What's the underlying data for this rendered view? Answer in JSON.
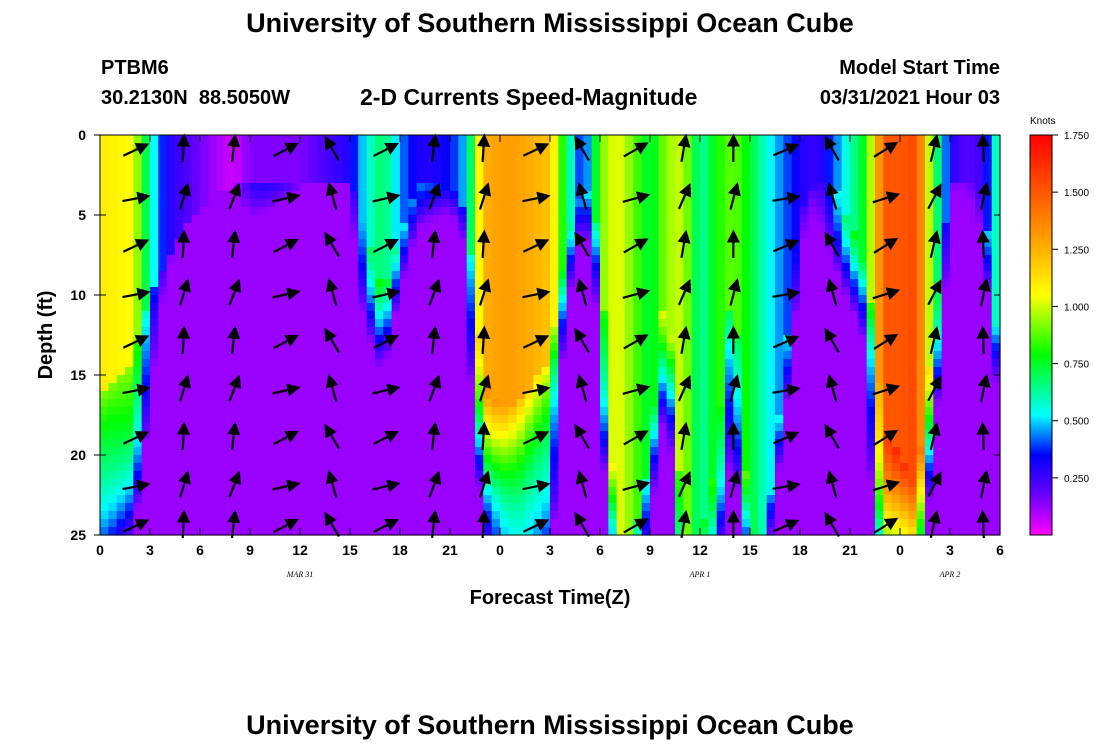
{
  "page": {
    "title_top": "University of Southern Mississippi Ocean Cube",
    "title_bottom": "University of Southern Mississippi Ocean Cube",
    "station_id": "PTBM6",
    "coordinates": "30.2130N  88.5050W",
    "subtitle": "2-D Currents Speed-Magnitude",
    "model_start_label": "Model Start Time",
    "model_start_value": "03/31/2021 Hour 03"
  },
  "chart_data": {
    "type": "heatmap",
    "title": "2-D Currents Speed-Magnitude",
    "xlabel": "Forecast Time(Z)",
    "ylabel": "Depth (ft)",
    "x_range_hours": [
      0,
      54
    ],
    "y_range_ft": [
      0,
      25
    ],
    "y_inverted": true,
    "x_tick_labels": [
      "0",
      "3",
      "6",
      "9",
      "12",
      "15",
      "18",
      "21",
      "0",
      "3",
      "6",
      "9",
      "12",
      "15",
      "18",
      "21",
      "0",
      "3",
      "6"
    ],
    "y_tick_labels": [
      "0",
      "5",
      "10",
      "15",
      "20",
      "25"
    ],
    "day_labels": [
      {
        "text": "MAR 31",
        "hour": 12
      },
      {
        "text": "APR 1",
        "hour": 36
      },
      {
        "text": "APR 2",
        "hour": 51
      }
    ],
    "colorbar": {
      "unit": "Knots",
      "min": 0,
      "max": 1.75,
      "tick_labels": [
        "1.750",
        "1.500",
        "1.250",
        "1.000",
        "0.750",
        "0.500",
        "0.250"
      ],
      "tick_values": [
        1.75,
        1.5,
        1.25,
        1.0,
        0.75,
        0.5,
        0.25
      ]
    },
    "speed_profile": {
      "hours": [
        0,
        2,
        3,
        4,
        5.5,
        7,
        8,
        9,
        11,
        12,
        13,
        15,
        16,
        17,
        18,
        19,
        20,
        21,
        22,
        23,
        24,
        25,
        27,
        28,
        29,
        30,
        31,
        32,
        33,
        34,
        35,
        36,
        37,
        38,
        39,
        40,
        42,
        43,
        44,
        46,
        47,
        48,
        49,
        50,
        51,
        52,
        53,
        54
      ],
      "surface_knots": [
        1.1,
        1.05,
        0.6,
        0.3,
        0.2,
        0.1,
        0.05,
        0.15,
        0.15,
        0.15,
        0.2,
        0.3,
        0.55,
        0.7,
        0.45,
        0.3,
        0.3,
        0.35,
        0.5,
        1.25,
        1.3,
        1.3,
        1.2,
        0.7,
        0.3,
        0.9,
        1.05,
        0.9,
        0.7,
        0.95,
        1.0,
        0.6,
        0.8,
        0.9,
        0.75,
        0.55,
        0.3,
        0.25,
        0.4,
        0.8,
        1.5,
        1.5,
        1.55,
        0.8,
        0.3,
        0.2,
        0.25,
        0.7
      ],
      "core_depth_ft": [
        16,
        14,
        10,
        8,
        5,
        4,
        3,
        3,
        3,
        3,
        3,
        3,
        6,
        10,
        6,
        3,
        3,
        3,
        5,
        15,
        17,
        17,
        14,
        6,
        3,
        6,
        25,
        25,
        20,
        8,
        25,
        25,
        20,
        8,
        25,
        25,
        5,
        3,
        3,
        8,
        18,
        20,
        22,
        12,
        3,
        3,
        3,
        15
      ]
    }
  }
}
